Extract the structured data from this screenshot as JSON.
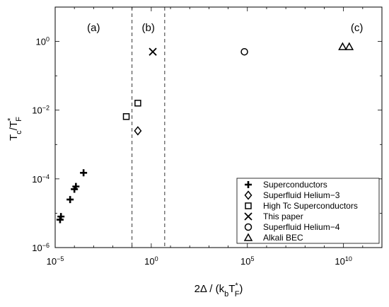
{
  "chart_data": {
    "type": "scatter",
    "x_scale": "log",
    "y_scale": "log",
    "xlim": [
      1e-05,
      1000000000000
    ],
    "ylim": [
      1e-06,
      10
    ],
    "xlabel": {
      "prefix": "2Δ / (k",
      "sub1": "b",
      "mid": "T",
      "sub2": "F",
      "sup": "*",
      "suffix": ")"
    },
    "ylabel": {
      "base": "T",
      "sub1": "c",
      "slash": "/T",
      "sub2": "F",
      "sup": "*"
    },
    "x_ticks": [
      {
        "value": 1e-05,
        "base": "10",
        "exp": "−5"
      },
      {
        "value": 1,
        "base": "10",
        "exp": "0"
      },
      {
        "value": 100000,
        "base": "10",
        "exp": "5"
      },
      {
        "value": 10000000000,
        "base": "10",
        "exp": "10"
      }
    ],
    "y_ticks": [
      {
        "value": 1e-06,
        "base": "10",
        "exp": "−6"
      },
      {
        "value": 0.0001,
        "base": "10",
        "exp": "−4"
      },
      {
        "value": 0.01,
        "base": "10",
        "exp": "−2"
      },
      {
        "value": 1,
        "base": "10",
        "exp": "0"
      }
    ],
    "dividers_x": [
      0.1,
      5
    ],
    "regions": [
      {
        "label": "(a)",
        "x": 0.001
      },
      {
        "label": "(b)",
        "x": 0.7
      },
      {
        "label": "(c)",
        "x": 50000000000
      }
    ],
    "series": [
      {
        "name": "Superconductors",
        "marker": "plus",
        "points": [
          [
            1.8e-05,
            6.5e-06
          ],
          [
            2e-05,
            8e-06
          ],
          [
            6e-05,
            2.5e-05
          ],
          [
            0.0001,
            5e-05
          ],
          [
            0.00012,
            6e-05
          ],
          [
            0.0003,
            0.00015
          ]
        ]
      },
      {
        "name": "Superfluid Helium−3",
        "marker": "diamond",
        "points": [
          [
            0.2,
            0.0025
          ]
        ]
      },
      {
        "name": "High Tc Superconductors",
        "marker": "square",
        "points": [
          [
            0.05,
            0.0065
          ],
          [
            0.2,
            0.016
          ]
        ]
      },
      {
        "name": "This paper",
        "marker": "x",
        "points": [
          [
            1.2,
            0.5
          ]
        ]
      },
      {
        "name": "Superfluid Helium−4",
        "marker": "circle",
        "points": [
          [
            70000,
            0.5
          ]
        ]
      },
      {
        "name": "Alkali BEC",
        "marker": "triangle",
        "points": [
          [
            9000000000,
            0.7
          ],
          [
            20000000000,
            0.7
          ]
        ]
      }
    ],
    "legend": {
      "placement": "bottom-right"
    },
    "grid": false
  }
}
